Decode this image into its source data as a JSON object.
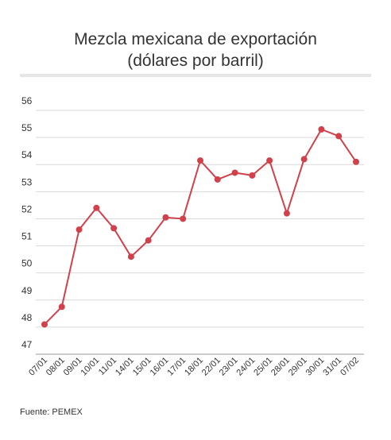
{
  "chart_data": {
    "type": "line",
    "title_line1": "Mezcla mexicana de exportación",
    "title_line2": "(dólares por barril)",
    "xlabel": "",
    "ylabel": "",
    "ylim": [
      47,
      56
    ],
    "yticks": [
      47,
      48,
      49,
      50,
      51,
      52,
      53,
      54,
      55,
      56
    ],
    "grid": true,
    "categories": [
      "07/01",
      "08/01",
      "09/01",
      "10/01",
      "11/01",
      "14/01",
      "15/01",
      "16/01",
      "17/01",
      "18/01",
      "22/01",
      "23/01",
      "24/01",
      "25/01",
      "28/01",
      "29/01",
      "30/01",
      "31/01",
      "07/02"
    ],
    "series": [
      {
        "values": [
          48.1,
          48.75,
          51.6,
          52.4,
          51.65,
          50.6,
          51.2,
          52.05,
          52.0,
          54.15,
          53.45,
          53.7,
          53.6,
          54.15,
          52.2,
          54.2,
          55.3,
          55.05,
          54.1
        ],
        "color": "#d0414b"
      }
    ],
    "source": "Fuente: PEMEX"
  },
  "colors": {
    "line": "#d0414b",
    "grid": "#d9d9d9",
    "axis": "#333333"
  }
}
